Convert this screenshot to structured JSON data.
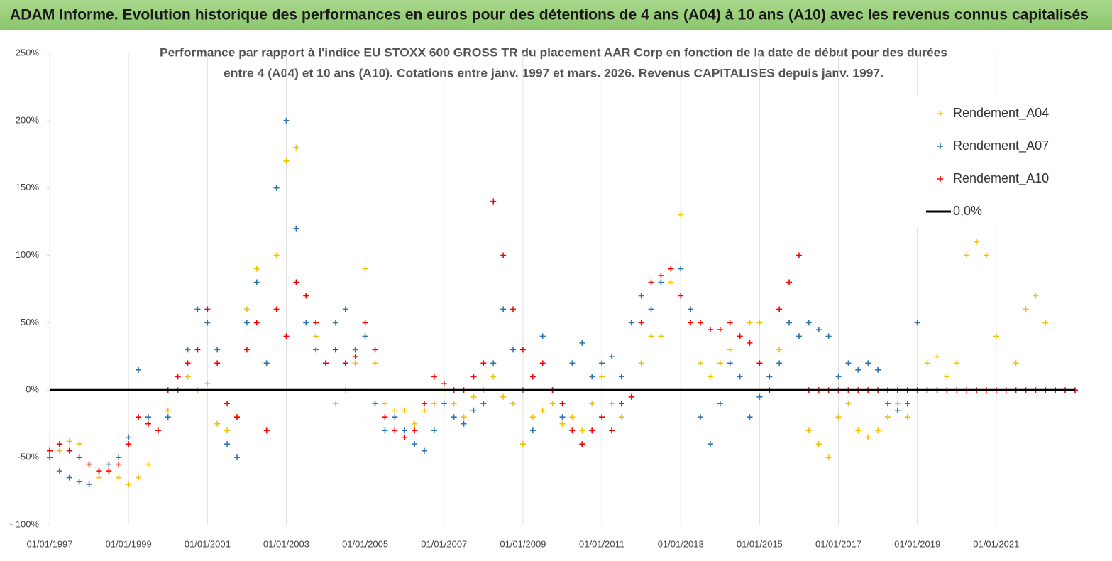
{
  "chart_data": {
    "type": "scatter",
    "title": "ADAM Informe. Evolution historique des performances en euros pour des détentions de 4 ans (A04) à 10 ans (A10) avec les revenus connus capitalisés",
    "subtitle": [
      "Performance par rapport à l'indice EU STOXX 600 GROSS TR  du placement AAR Corp en fonction de la date de début pour des durées",
      "entre 4 (A04) et 10 ans (A10). Cotations entre janv. 1997 et mars. 2026. Revenus CAPITALISES depuis janv. 1997."
    ],
    "x": [
      "01/01/1997",
      "01/04/1997",
      "01/07/1997",
      "01/10/1997",
      "01/01/1998",
      "01/04/1998",
      "01/07/1998",
      "01/10/1998",
      "01/01/1999",
      "01/04/1999",
      "01/07/1999",
      "01/10/1999",
      "01/01/2000",
      "01/04/2000",
      "01/07/2000",
      "01/10/2000",
      "01/01/2001",
      "01/04/2001",
      "01/07/2001",
      "01/10/2001",
      "01/01/2002",
      "01/04/2002",
      "01/07/2002",
      "01/10/2002",
      "01/01/2003",
      "01/04/2003",
      "01/07/2003",
      "01/10/2003",
      "01/01/2004",
      "01/04/2004",
      "01/07/2004",
      "01/10/2004",
      "01/01/2005",
      "01/04/2005",
      "01/07/2005",
      "01/10/2005",
      "01/01/2006",
      "01/04/2006",
      "01/07/2006",
      "01/10/2006",
      "01/01/2007",
      "01/04/2007",
      "01/07/2007",
      "01/10/2007",
      "01/01/2008",
      "01/04/2008",
      "01/07/2008",
      "01/10/2008",
      "01/01/2009",
      "01/04/2009",
      "01/07/2009",
      "01/10/2009",
      "01/01/2010",
      "01/04/2010",
      "01/07/2010",
      "01/10/2010",
      "01/01/2011",
      "01/04/2011",
      "01/07/2011",
      "01/10/2011",
      "01/01/2012",
      "01/04/2012",
      "01/07/2012",
      "01/10/2012",
      "01/01/2013",
      "01/04/2013",
      "01/07/2013",
      "01/10/2013",
      "01/01/2014",
      "01/04/2014",
      "01/07/2014",
      "01/10/2014",
      "01/01/2015",
      "01/04/2015",
      "01/07/2015",
      "01/10/2015",
      "01/01/2016",
      "01/04/2016",
      "01/07/2016",
      "01/10/2016",
      "01/01/2017",
      "01/04/2017",
      "01/07/2017",
      "01/10/2017",
      "01/01/2018",
      "01/04/2018",
      "01/07/2018",
      "01/10/2018",
      "01/01/2019",
      "01/04/2019",
      "01/07/2019",
      "01/10/2019",
      "01/01/2020",
      "01/04/2020",
      "01/07/2020",
      "01/10/2020",
      "01/01/2021",
      "01/04/2021",
      "01/07/2021",
      "01/10/2021",
      "01/01/2022",
      "01/04/2022",
      "01/07/2022",
      "01/10/2022",
      "01/01/2023"
    ],
    "series": [
      {
        "name": "Rendement_A04",
        "color": "#f5c000",
        "values": [
          -45,
          -45,
          -38,
          -40,
          -55,
          -65,
          -60,
          -65,
          -70,
          -65,
          -55,
          -30,
          -15,
          0,
          10,
          0,
          5,
          -25,
          -30,
          -20,
          60,
          90,
          20,
          100,
          170,
          180,
          70,
          40,
          20,
          -10,
          0,
          20,
          90,
          20,
          -10,
          -15,
          -15,
          -25,
          -15,
          -10,
          0,
          -10,
          -20,
          -5,
          0,
          10,
          -5,
          -10,
          -40,
          -20,
          -15,
          -10,
          -25,
          -20,
          -30,
          -10,
          10,
          -10,
          -20,
          -5,
          20,
          40,
          40,
          80,
          130,
          60,
          20,
          10,
          20,
          30,
          40,
          50,
          50,
          10,
          30,
          50,
          40,
          -30,
          -40,
          -50,
          -20,
          -10,
          -30,
          -35,
          -30,
          -20,
          -10,
          -20,
          0,
          20,
          25,
          10,
          20,
          100,
          110,
          100,
          40,
          0,
          20,
          60,
          70,
          50,
          null,
          null,
          null
        ]
      },
      {
        "name": "Rendement_A07",
        "color": "#2e75b6",
        "values": [
          -50,
          -60,
          -65,
          -68,
          -70,
          -60,
          -55,
          -50,
          -35,
          15,
          -20,
          -30,
          -20,
          0,
          30,
          60,
          50,
          30,
          -40,
          -50,
          50,
          80,
          20,
          150,
          200,
          120,
          50,
          30,
          20,
          50,
          60,
          30,
          40,
          -10,
          -30,
          -20,
          -30,
          -40,
          -45,
          -30,
          -10,
          -20,
          -25,
          -15,
          -10,
          20,
          60,
          30,
          0,
          -30,
          40,
          0,
          -20,
          20,
          35,
          10,
          20,
          25,
          10,
          50,
          70,
          60,
          80,
          90,
          90,
          60,
          -20,
          -40,
          -10,
          20,
          10,
          -20,
          -5,
          10,
          20,
          50,
          40,
          50,
          45,
          40,
          10,
          20,
          15,
          20,
          15,
          -10,
          -15,
          -10,
          50,
          null,
          null,
          null,
          null,
          null,
          null,
          null,
          null,
          null,
          null,
          null,
          null,
          null,
          null,
          null,
          null
        ]
      },
      {
        "name": "Rendement_A10",
        "color": "#ff0000",
        "values": [
          -45,
          -40,
          -45,
          -50,
          -55,
          -60,
          -60,
          -55,
          -40,
          -20,
          -25,
          -30,
          0,
          10,
          20,
          30,
          60,
          20,
          -10,
          -20,
          30,
          50,
          -30,
          60,
          40,
          80,
          70,
          50,
          20,
          30,
          20,
          25,
          50,
          30,
          -20,
          -30,
          -35,
          -30,
          -10,
          10,
          5,
          0,
          0,
          10,
          20,
          140,
          100,
          60,
          30,
          10,
          20,
          0,
          -10,
          -30,
          -40,
          -30,
          -20,
          -30,
          -10,
          -5,
          50,
          80,
          85,
          90,
          70,
          50,
          50,
          45,
          45,
          50,
          40,
          35,
          20,
          0,
          60,
          80,
          100,
          0,
          0,
          0,
          0,
          0,
          0,
          0,
          0,
          0,
          0,
          0,
          0,
          0,
          0,
          0,
          0,
          0,
          0,
          0,
          0,
          0,
          0,
          0,
          0,
          0,
          0,
          0,
          0
        ]
      }
    ],
    "reference_line": {
      "name": "0,0%",
      "value": 0,
      "color": "#000000"
    },
    "xlim": [
      "01/01/1997",
      "01/01/2023"
    ],
    "xticks": [
      "01/01/1997",
      "01/01/1999",
      "01/01/2001",
      "01/01/2003",
      "01/01/2005",
      "01/01/2007",
      "01/01/2009",
      "01/01/2011",
      "01/01/2013",
      "01/01/2015",
      "01/01/2017",
      "01/01/2019",
      "01/01/2021"
    ],
    "ylim": [
      -100,
      250
    ],
    "yticks": [
      {
        "value": -100,
        "label": "- 100%"
      },
      {
        "value": -50,
        "label": "-50%"
      },
      {
        "value": 0,
        "label": "0%"
      },
      {
        "value": 50,
        "label": "50%"
      },
      {
        "value": 100,
        "label": "100%"
      },
      {
        "value": 150,
        "label": "150%"
      },
      {
        "value": 200,
        "label": "200%"
      },
      {
        "value": 250,
        "label": "250%"
      }
    ],
    "grid": "x",
    "legend": "upper right"
  }
}
